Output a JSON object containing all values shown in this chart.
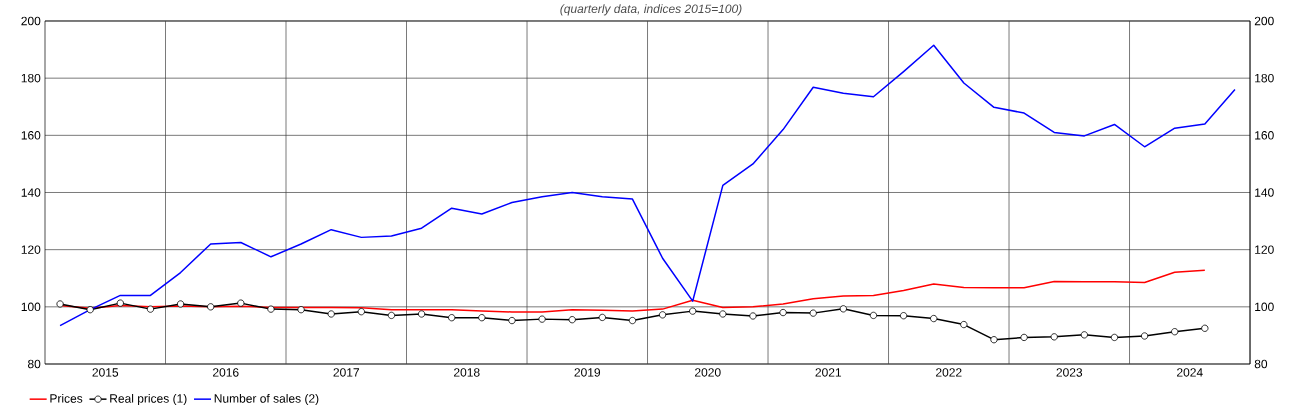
{
  "chart_data": {
    "type": "line",
    "subtitle": "(quarterly data, indices 2015=100)",
    "x": [
      2015.125,
      2015.375,
      2015.625,
      2015.875,
      2016.125,
      2016.375,
      2016.625,
      2016.875,
      2017.125,
      2017.375,
      2017.625,
      2017.875,
      2018.125,
      2018.375,
      2018.625,
      2018.875,
      2019.125,
      2019.375,
      2019.625,
      2019.875,
      2020.125,
      2020.375,
      2020.625,
      2020.875,
      2021.125,
      2021.375,
      2021.625,
      2021.875,
      2022.125,
      2022.375,
      2022.625,
      2022.875,
      2023.125,
      2023.375,
      2023.625,
      2023.875,
      2024.125,
      2024.375,
      2024.625,
      2024.875
    ],
    "xlim": [
      2015,
      2025
    ],
    "xticks": [
      {
        "value": 2015.5,
        "label": "2015"
      },
      {
        "value": 2016,
        "label": null
      },
      {
        "value": 2016.5,
        "label": "2016"
      },
      {
        "value": 2017,
        "label": null
      },
      {
        "value": 2017.5,
        "label": "2017"
      },
      {
        "value": 2018,
        "label": null
      },
      {
        "value": 2018.5,
        "label": "2018"
      },
      {
        "value": 2019,
        "label": null
      },
      {
        "value": 2019.5,
        "label": "2019"
      },
      {
        "value": 2020,
        "label": null
      },
      {
        "value": 2020.5,
        "label": "2020"
      },
      {
        "value": 2021,
        "label": null
      },
      {
        "value": 2021.5,
        "label": "2021"
      },
      {
        "value": 2022,
        "label": null
      },
      {
        "value": 2022.5,
        "label": "2022"
      },
      {
        "value": 2023,
        "label": null
      },
      {
        "value": 2023.5,
        "label": "2023"
      },
      {
        "value": 2024,
        "label": null
      },
      {
        "value": 2024.5,
        "label": "2024"
      }
    ],
    "ylim": [
      80,
      200
    ],
    "yticks": [
      80,
      100,
      120,
      140,
      160,
      180,
      200
    ],
    "y2lim": [
      80,
      200
    ],
    "y2ticks": [
      80,
      100,
      120,
      140,
      160,
      180,
      200
    ],
    "grid": true,
    "legend": "bottom",
    "series": [
      {
        "name": "Prices",
        "color": "#ff0000",
        "marker": "none",
        "values": [
          100.5,
          99.5,
          100.5,
          100,
          100.3,
          100,
          100.2,
          99.8,
          99.8,
          99.8,
          99.7,
          99,
          99,
          99,
          98.5,
          98.2,
          98.2,
          99,
          98.8,
          98.5,
          99.2,
          102.3,
          99.8,
          100,
          101,
          102.8,
          103.8,
          104,
          105.7,
          108,
          106.8,
          106.7,
          106.7,
          108.9,
          108.8,
          108.8,
          108.5,
          112.1,
          112.8,
          null
        ]
      },
      {
        "name": "Real prices (1)",
        "color": "#000000",
        "marker": "circle",
        "values": [
          101,
          99,
          101.3,
          99.2,
          101,
          100,
          101.3,
          99.2,
          99,
          97.5,
          98.3,
          97,
          97.5,
          96.2,
          96.2,
          95.2,
          95.7,
          95.5,
          96.3,
          95.2,
          97.2,
          98.5,
          97.5,
          96.8,
          98,
          97.8,
          99.3,
          97,
          96.9,
          95.9,
          93.8,
          88.5,
          89.3,
          89.5,
          90.2,
          89.3,
          89.8,
          91.3,
          92.5,
          null
        ]
      },
      {
        "name": "Number of sales (2)",
        "color": "#0000ff",
        "marker": "none",
        "values": [
          93.4,
          99,
          104,
          104,
          112,
          122,
          122.5,
          117.5,
          122,
          127,
          124.3,
          124.8,
          127.5,
          134.5,
          132.5,
          136.5,
          138.5,
          140,
          138.5,
          137.7,
          117,
          102,
          142.5,
          150,
          162,
          176.8,
          174.7,
          173.5,
          182.3,
          191.5,
          178.3,
          169.8,
          167.8,
          161,
          159.8,
          163.8,
          156,
          162.5,
          164,
          176
        ]
      }
    ]
  }
}
